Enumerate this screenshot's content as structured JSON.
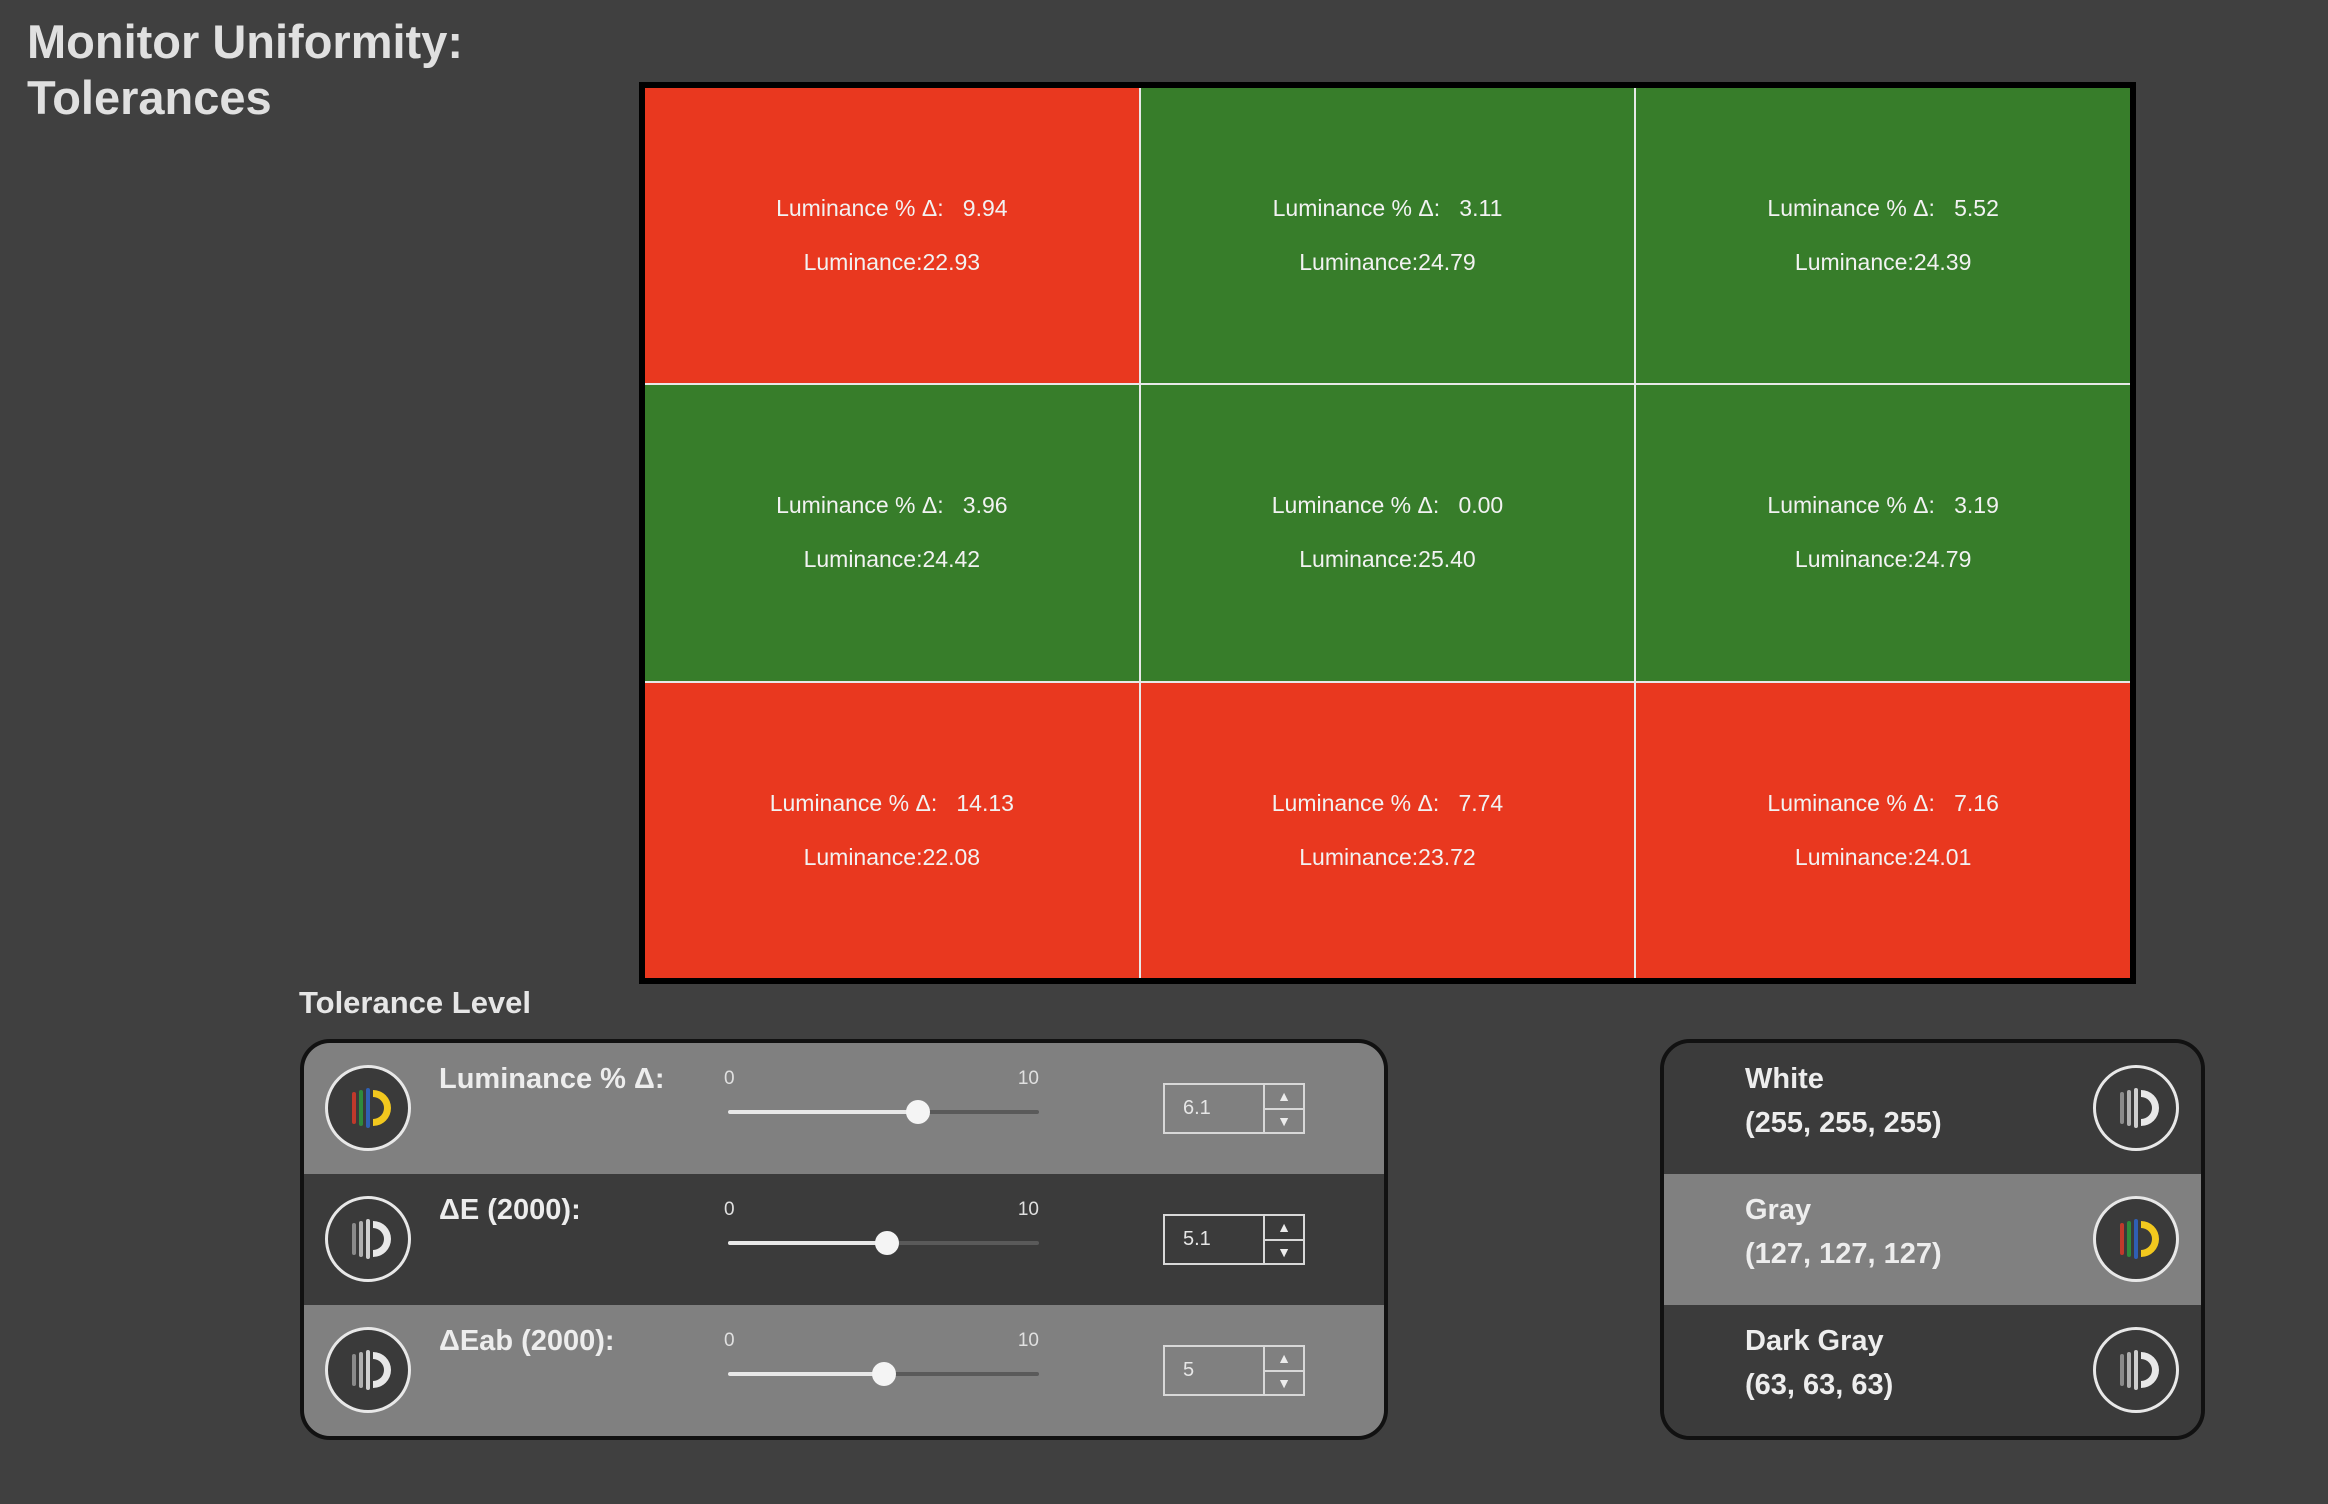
{
  "page_title_line1": "Monitor Uniformity:",
  "page_title_line2": "Tolerances",
  "grid": {
    "cells": [
      {
        "delta_label": "Luminance % Δ:",
        "delta": "9.94",
        "lum_label": "Luminance:",
        "luminance": "22.93",
        "status": "fail"
      },
      {
        "delta_label": "Luminance % Δ:",
        "delta": "3.11",
        "lum_label": "Luminance:",
        "luminance": "24.79",
        "status": "pass"
      },
      {
        "delta_label": "Luminance % Δ:",
        "delta": "5.52",
        "lum_label": "Luminance:",
        "luminance": "24.39",
        "status": "pass"
      },
      {
        "delta_label": "Luminance % Δ:",
        "delta": "3.96",
        "lum_label": "Luminance:",
        "luminance": "24.42",
        "status": "pass"
      },
      {
        "delta_label": "Luminance % Δ:",
        "delta": "0.00",
        "lum_label": "Luminance:",
        "luminance": "25.40",
        "status": "pass"
      },
      {
        "delta_label": "Luminance % Δ:",
        "delta": "3.19",
        "lum_label": "Luminance:",
        "luminance": "24.79",
        "status": "pass"
      },
      {
        "delta_label": "Luminance % Δ:",
        "delta": "14.13",
        "lum_label": "Luminance:",
        "luminance": "22.08",
        "status": "fail"
      },
      {
        "delta_label": "Luminance % Δ:",
        "delta": "7.74",
        "lum_label": "Luminance:",
        "luminance": "23.72",
        "status": "fail"
      },
      {
        "delta_label": "Luminance % Δ:",
        "delta": "7.16",
        "lum_label": "Luminance:",
        "luminance": "24.01",
        "status": "fail"
      }
    ],
    "colors": {
      "fail": "#e9381f",
      "pass": "#377d2a"
    }
  },
  "tolerance": {
    "heading": "Tolerance Level",
    "rows": [
      {
        "label": "Luminance % Δ:",
        "min": "0",
        "max": "10",
        "value": "6.1",
        "selected": true
      },
      {
        "label": "ΔE (2000):",
        "min": "0",
        "max": "10",
        "value": "5.1",
        "selected": false
      },
      {
        "label": "ΔEab (2000):",
        "min": "0",
        "max": "10",
        "value": "5",
        "selected": false
      }
    ]
  },
  "reference": {
    "rows": [
      {
        "name": "White",
        "rgb": "(255, 255, 255)",
        "selected": false
      },
      {
        "name": "Gray",
        "rgb": "(127, 127, 127)",
        "selected": true
      },
      {
        "name": "Dark Gray",
        "rgb": "(63, 63, 63)",
        "selected": false
      }
    ]
  },
  "icons": {
    "active": "calibration-active-icon",
    "inactive": "calibration-inactive-icon",
    "spin_up": "▲",
    "spin_down": "▼"
  }
}
